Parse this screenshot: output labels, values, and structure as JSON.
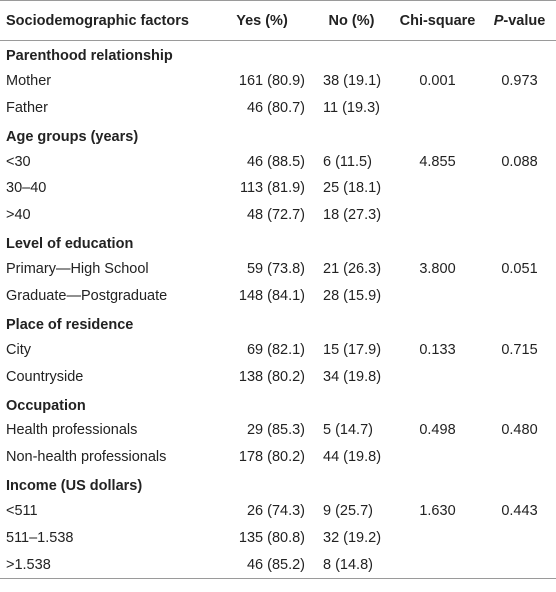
{
  "header": {
    "factors": "Sociodemographic factors",
    "yes": "Yes (%)",
    "no": "No (%)",
    "chi": "Chi-square",
    "p_italic": "P",
    "p_rest": "-value"
  },
  "sections": [
    {
      "title": "Parenthood relationship",
      "rows": [
        {
          "label": "Mother",
          "yes": "161 (80.9)",
          "no": "38 (19.1)",
          "chi": "0.001",
          "p": "0.973"
        },
        {
          "label": "Father",
          "yes": "46 (80.7)",
          "no": "11 (19.3)",
          "chi": "",
          "p": ""
        }
      ]
    },
    {
      "title": "Age groups (years)",
      "rows": [
        {
          "label": "<30",
          "yes": "46 (88.5)",
          "no": "6 (11.5)",
          "chi": "4.855",
          "p": "0.088"
        },
        {
          "label": "30–40",
          "yes": "113 (81.9)",
          "no": "25 (18.1)",
          "chi": "",
          "p": ""
        },
        {
          "label": ">40",
          "yes": "48 (72.7)",
          "no": "18 (27.3)",
          "chi": "",
          "p": ""
        }
      ]
    },
    {
      "title": "Level of education",
      "rows": [
        {
          "label": "Primary—High School",
          "yes": "59 (73.8)",
          "no": "21 (26.3)",
          "chi": "3.800",
          "p": "0.051"
        },
        {
          "label": "Graduate—Postgraduate",
          "yes": "148 (84.1)",
          "no": "28 (15.9)",
          "chi": "",
          "p": ""
        }
      ]
    },
    {
      "title": "Place of residence",
      "rows": [
        {
          "label": "City",
          "yes": "69 (82.1)",
          "no": "15 (17.9)",
          "chi": "0.133",
          "p": "0.715"
        },
        {
          "label": "Countryside",
          "yes": "138 (80.2)",
          "no": "34 (19.8)",
          "chi": "",
          "p": ""
        }
      ]
    },
    {
      "title": "Occupation",
      "rows": [
        {
          "label": "Health professionals",
          "yes": "29 (85.3)",
          "no": "5 (14.7)",
          "chi": "0.498",
          "p": "0.480"
        },
        {
          "label": "Non-health professionals",
          "yes": "178 (80.2)",
          "no": "44 (19.8)",
          "chi": "",
          "p": ""
        }
      ]
    },
    {
      "title": "Income (US dollars)",
      "rows": [
        {
          "label": "<511",
          "yes": "26 (74.3)",
          "no": "9 (25.7)",
          "chi": "1.630",
          "p": "0.443"
        },
        {
          "label": "511–1.538",
          "yes": "135 (80.8)",
          "no": "32 (19.2)",
          "chi": "",
          "p": ""
        },
        {
          "label": ">1.538",
          "yes": "46 (85.2)",
          "no": "8 (14.8)",
          "chi": "",
          "p": ""
        }
      ]
    }
  ]
}
